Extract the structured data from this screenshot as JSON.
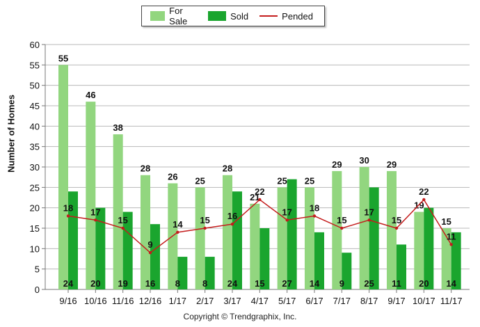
{
  "chart_data": {
    "type": "bar",
    "categories": [
      "9/16",
      "10/16",
      "11/16",
      "12/16",
      "1/17",
      "2/17",
      "3/17",
      "4/17",
      "5/17",
      "6/17",
      "7/17",
      "8/17",
      "9/17",
      "10/17",
      "11/17"
    ],
    "series": [
      {
        "name": "For Sale",
        "type": "bar",
        "color": "#92d67f",
        "values": [
          55,
          46,
          38,
          28,
          26,
          25,
          28,
          21,
          25,
          25,
          29,
          30,
          29,
          19,
          15
        ]
      },
      {
        "name": "Sold",
        "type": "bar",
        "color": "#1aa52e",
        "values": [
          24,
          20,
          19,
          16,
          8,
          8,
          24,
          15,
          27,
          14,
          9,
          25,
          11,
          20,
          14
        ]
      },
      {
        "name": "Pended",
        "type": "line",
        "color": "#c41c1c",
        "values": [
          18,
          17,
          15,
          9,
          14,
          15,
          16,
          22,
          17,
          18,
          15,
          17,
          15,
          22,
          11
        ]
      }
    ],
    "ylabel": "Number of Homes",
    "ylim": [
      0,
      60
    ],
    "yticks": [
      0,
      5,
      10,
      15,
      20,
      25,
      30,
      35,
      40,
      45,
      50,
      55,
      60
    ],
    "grid": true,
    "legend": "top-center"
  },
  "footer": {
    "copyright": "Copyright © Trendgraphix, Inc."
  }
}
